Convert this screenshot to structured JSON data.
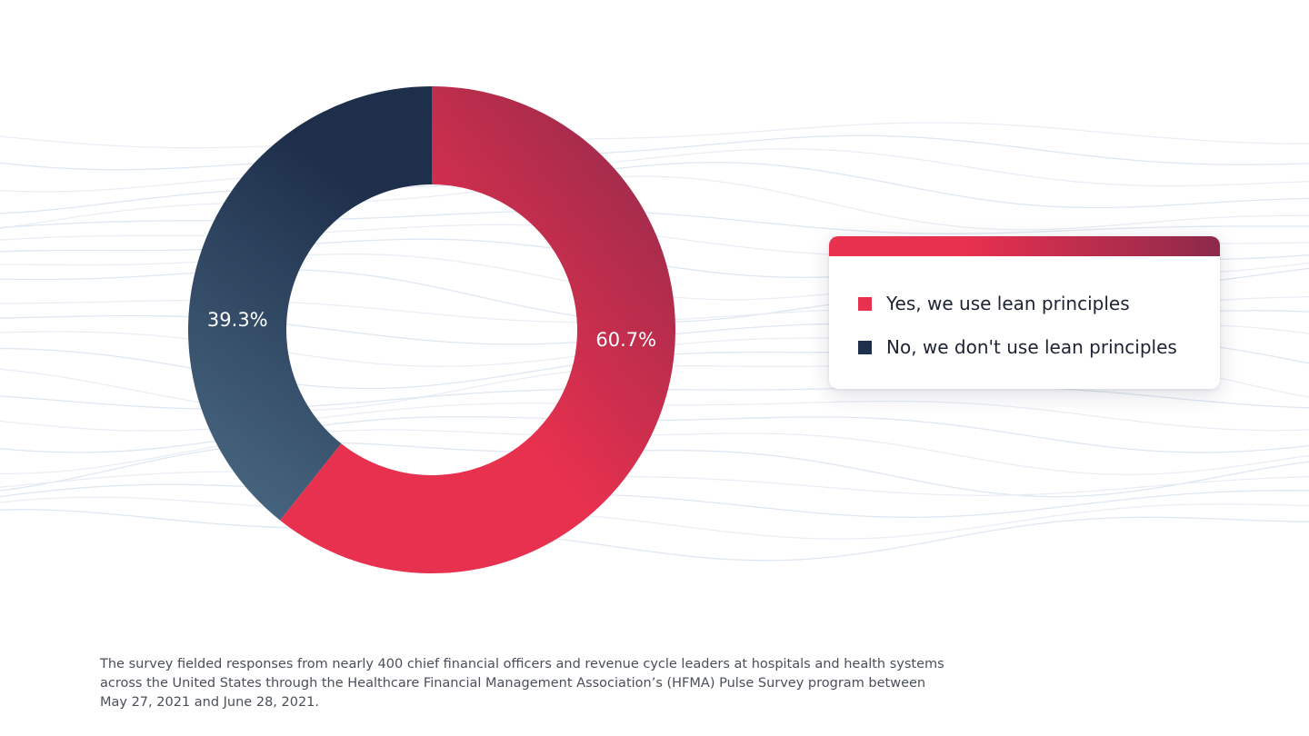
{
  "colors": {
    "yes_start": "#e8304f",
    "yes_end": "#8c2a4a",
    "no_start": "#1e2f4b",
    "no_end": "#47657f",
    "legend_bar_start": "#e8304f",
    "legend_bar_end": "#8c2a4a",
    "footnote_text": "#4a4f58"
  },
  "chart_data": {
    "type": "pie",
    "variant": "donut",
    "title": "",
    "categories": [
      "Yes, we use lean principles",
      "No, we don't use lean principles"
    ],
    "values": [
      60.7,
      39.3
    ],
    "value_labels": [
      "60.7%",
      "39.3%"
    ],
    "colors": [
      "#e8304f",
      "#1e2f4b"
    ],
    "start_angle_deg": 0,
    "direction": "clockwise",
    "legend_placement": "right"
  },
  "legend": {
    "items": [
      {
        "label": "Yes, we use lean principles",
        "color": "#e8304f"
      },
      {
        "label": "No, we don't use lean principles",
        "color": "#1e2f4b"
      }
    ]
  },
  "footnote": {
    "text": "The survey fielded responses from nearly 400 chief financial officers and revenue cycle leaders at hospitals and health systems across the United States through the Healthcare Financial Management Association’s (HFMA) Pulse Survey program between May 27, 2021 and June 28, 2021."
  }
}
